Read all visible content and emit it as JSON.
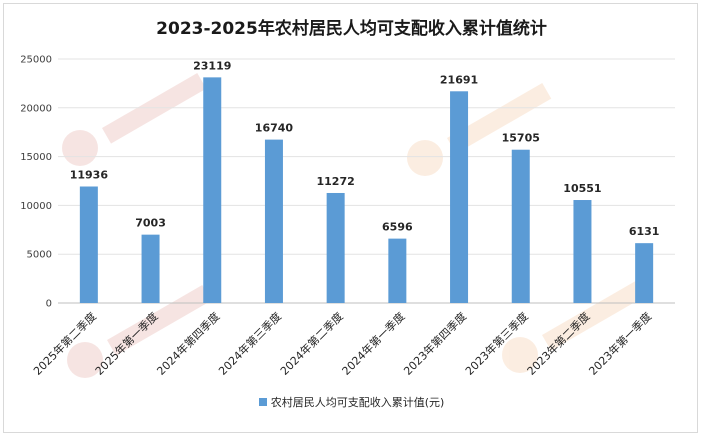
{
  "chart_data": {
    "type": "bar",
    "title": "2023-2025年农村居民人均可支配收入累计值统计",
    "categories": [
      "2025年第二季度",
      "2025年第一季度",
      "2024年第四季度",
      "2024年第三季度",
      "2024年第二季度",
      "2024年第一季度",
      "2023年第四季度",
      "2023年第三季度",
      "2023年第二季度",
      "2023年第一季度"
    ],
    "series": [
      {
        "name": "农村居民人均可支配收入累计值(元)",
        "values": [
          11936,
          7003,
          23119,
          16740,
          11272,
          6596,
          21691,
          15705,
          10551,
          6131
        ],
        "color": "#5b9bd5"
      }
    ],
    "ylim": [
      0,
      25000
    ],
    "yticks": [
      0,
      5000,
      10000,
      15000,
      20000,
      25000
    ],
    "grid": true,
    "legend": "bottom"
  }
}
